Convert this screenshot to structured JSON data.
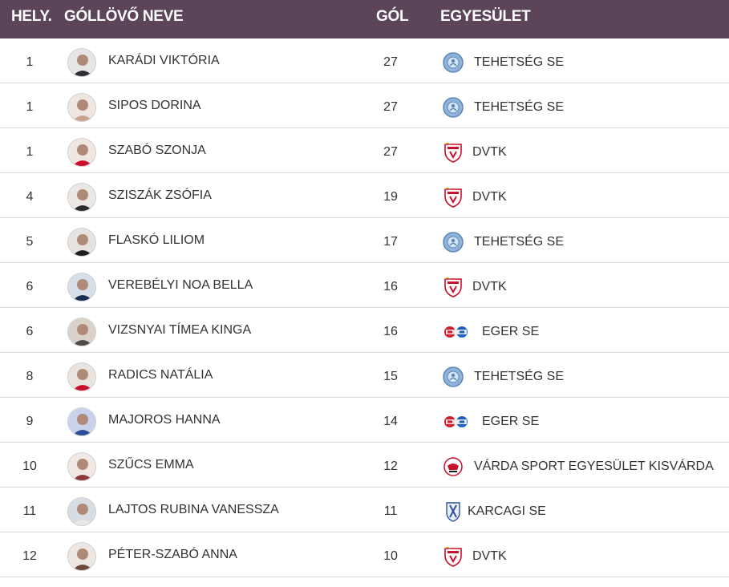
{
  "header": {
    "rank": "HELY.",
    "name": "GÓLLÖVŐ NEVE",
    "goals": "GÓL",
    "club": "EGYESÜLET"
  },
  "rows": [
    {
      "rank": "1",
      "name": "KARÁDI VIKTÓRIA",
      "goals": "27",
      "club": "TEHETSÉG SE",
      "crest": "tehetseg-crest-icon"
    },
    {
      "rank": "1",
      "name": "SIPOS DORINA",
      "goals": "27",
      "club": "TEHETSÉG SE",
      "crest": "tehetseg-crest-icon"
    },
    {
      "rank": "1",
      "name": "SZABÓ SZONJA",
      "goals": "27",
      "club": "DVTK",
      "crest": "dvtk-crest-icon"
    },
    {
      "rank": "4",
      "name": "SZISZÁK ZSÓFIA",
      "goals": "19",
      "club": "DVTK",
      "crest": "dvtk-crest-icon"
    },
    {
      "rank": "5",
      "name": "FLASKÓ LILIOM",
      "goals": "17",
      "club": "TEHETSÉG SE",
      "crest": "tehetseg-crest-icon"
    },
    {
      "rank": "6",
      "name": "VEREBÉLYI NOA BELLA",
      "goals": "16",
      "club": "DVTK",
      "crest": "dvtk-crest-icon"
    },
    {
      "rank": "6",
      "name": "VIZSNYAI TÍMEA KINGA",
      "goals": "16",
      "club": "EGER SE",
      "crest": "eger-crest-icon"
    },
    {
      "rank": "8",
      "name": "RADICS NATÁLIA",
      "goals": "15",
      "club": "TEHETSÉG SE",
      "crest": "tehetseg-crest-icon"
    },
    {
      "rank": "9",
      "name": "MAJOROS HANNA",
      "goals": "14",
      "club": "EGER SE",
      "crest": "eger-crest-icon"
    },
    {
      "rank": "10",
      "name": "SZŰCS EMMA",
      "goals": "12",
      "club": "VÁRDA SPORT EGYESÜLET KISVÁRDA",
      "crest": "varda-crest-icon"
    },
    {
      "rank": "11",
      "name": "LAJTOS RUBINA VANESSZA",
      "goals": "11",
      "club": "KARCAGI SE",
      "crest": "karcag-crest-icon"
    },
    {
      "rank": "12",
      "name": "PÉTER-SZABÓ ANNA",
      "goals": "10",
      "club": "DVTK",
      "crest": "dvtk-crest-icon"
    }
  ],
  "colors": {
    "header_bg": "#5c4559",
    "header_text": "#ffffff",
    "row_border": "#d7d7d7",
    "body_text": "#333333"
  }
}
